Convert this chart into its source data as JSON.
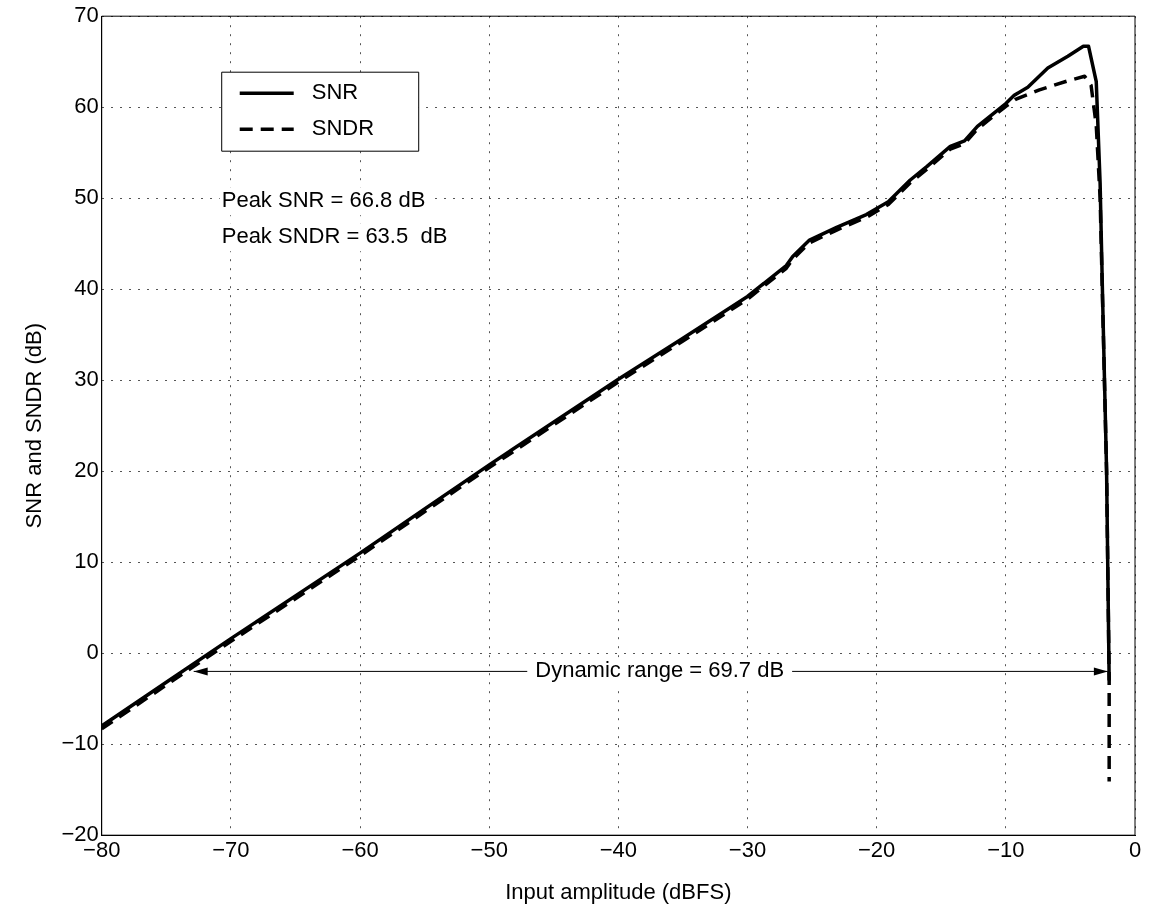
{
  "chart_data": {
    "type": "line",
    "xlabel": "Input amplitude (dBFS)",
    "ylabel": "SNR and SNDR (dB)",
    "xlim": [
      -80,
      0
    ],
    "xticks": [
      -80,
      -70,
      -60,
      -50,
      -40,
      -30,
      -20,
      -10,
      0
    ],
    "ylim": [
      -20,
      70
    ],
    "yticks": [
      -20,
      -10,
      0,
      10,
      20,
      30,
      40,
      50,
      60,
      70
    ],
    "grid": true,
    "legend": "top left",
    "marker": "none",
    "series": [
      {
        "name": "SNR",
        "color": "#000000",
        "line_style": "solid",
        "x": [
          -80,
          -75,
          -70,
          -60,
          -50,
          -40,
          -35,
          -30,
          -27,
          -26.5,
          -25.2,
          -23.1,
          -20.8,
          -19.1,
          -17.4,
          -16.1,
          -14.3,
          -13.2,
          -12.2,
          -10,
          -9.35,
          -8.3,
          -6.75,
          -5.2,
          -4,
          -3.6,
          -3,
          -2.7,
          -2.5,
          -2.2,
          -2
        ],
        "values": [
          -8,
          -3.2,
          1.6,
          11,
          20.7,
          30.1,
          34.6,
          39.2,
          42.6,
          43.6,
          45.4,
          46.8,
          48.2,
          49.6,
          52,
          53.5,
          55.7,
          56.3,
          57.9,
          60.4,
          61.3,
          62.2,
          64.3,
          65.6,
          66.7,
          66.7,
          62.8,
          51.6,
          38.5,
          20,
          -3
        ]
      },
      {
        "name": "SNDR",
        "color": "#000000",
        "line_style": "dashed",
        "x": [
          -80,
          -75,
          -70,
          -60,
          -50,
          -40,
          -35,
          -30,
          -27,
          -26.5,
          -25.2,
          -23.1,
          -20.8,
          -19.1,
          -17.4,
          -16.1,
          -14.3,
          -13.2,
          -12.2,
          -10,
          -9.2,
          -7.4,
          -5.2,
          -3.9,
          -3.4,
          -3,
          -2.7,
          -2.5,
          -2.2,
          -2,
          -2
        ],
        "values": [
          -8.3,
          -3.5,
          1.3,
          10.7,
          20.4,
          29.8,
          34.3,
          38.9,
          42.3,
          43.3,
          45.1,
          46.5,
          47.9,
          49.3,
          51.7,
          53.2,
          55.4,
          56,
          57.6,
          60.1,
          60.9,
          61.9,
          62.9,
          63.4,
          62.4,
          58,
          50,
          38,
          20,
          -3,
          -14.1
        ]
      }
    ],
    "annotations": [
      "Peak SNR = 66.8 dB",
      "Peak SNDR = 63.5  dB",
      {
        "text": "Dynamic range = 69.7 dB",
        "x": -2.1,
        "y": -2
      }
    ]
  }
}
